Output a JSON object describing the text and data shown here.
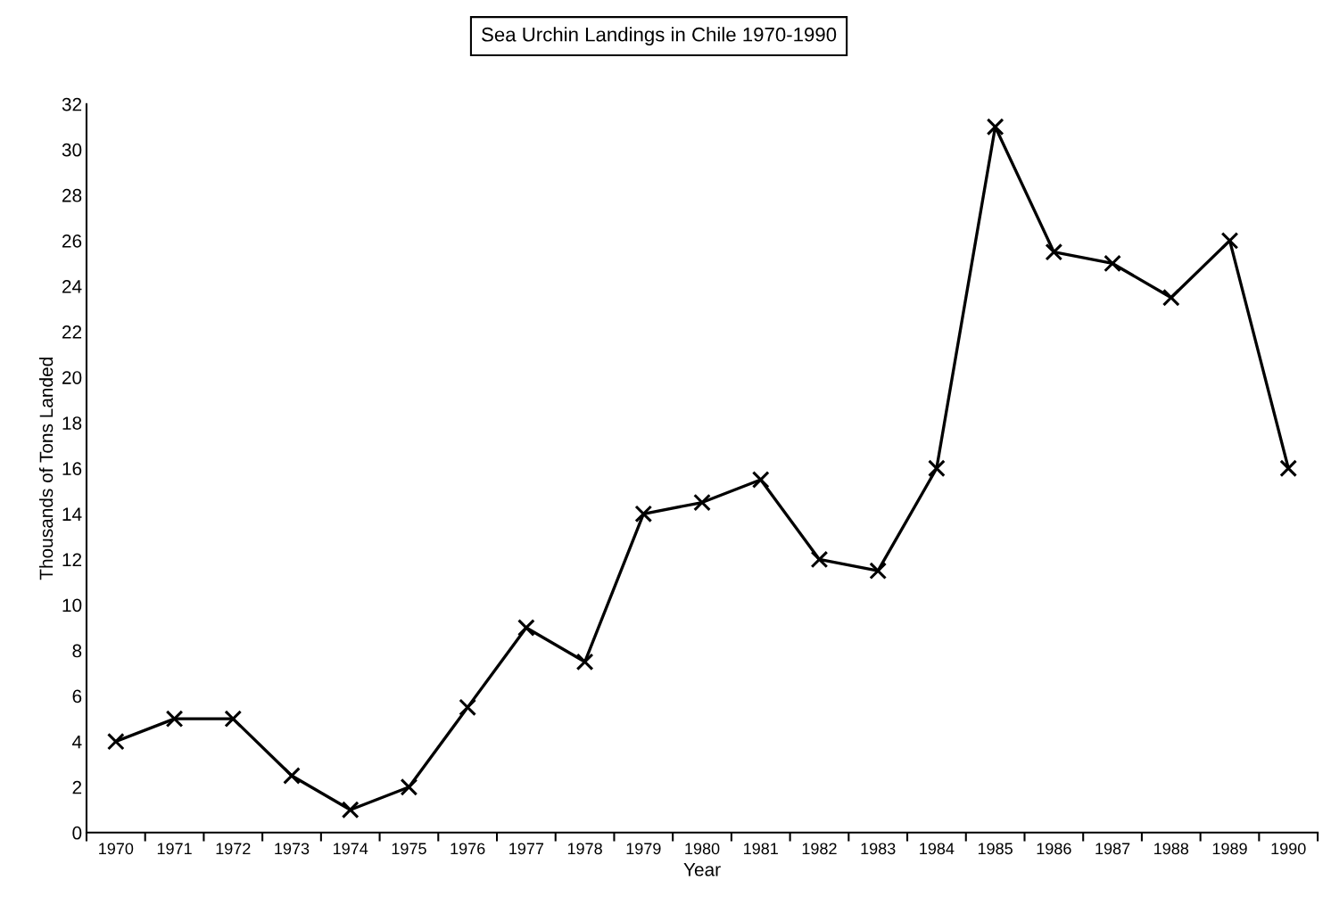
{
  "chart_data": {
    "type": "line",
    "title": "Sea Urchin Landings in Chile 1970-1990",
    "xlabel": "Year",
    "ylabel": "Thousands of Tons Landed",
    "categories": [
      "1970",
      "1971",
      "1972",
      "1973",
      "1974",
      "1975",
      "1976",
      "1977",
      "1978",
      "1979",
      "1980",
      "1981",
      "1982",
      "1983",
      "1984",
      "1985",
      "1986",
      "1987",
      "1988",
      "1989",
      "1990"
    ],
    "series": [
      {
        "color": "#000000",
        "values": [
          4,
          5,
          5,
          2.5,
          1,
          2,
          5.5,
          9,
          7.5,
          14,
          14.5,
          15.5,
          12,
          11.5,
          16,
          31,
          25.5,
          25,
          23.5,
          26,
          16
        ]
      }
    ],
    "ylim": [
      0,
      32
    ],
    "yticks": [
      0,
      2,
      4,
      6,
      8,
      10,
      12,
      14,
      16,
      18,
      20,
      22,
      24,
      26,
      28,
      30,
      32
    ],
    "grid": false,
    "legend": false,
    "marker": "cross",
    "line_style": "solid"
  }
}
